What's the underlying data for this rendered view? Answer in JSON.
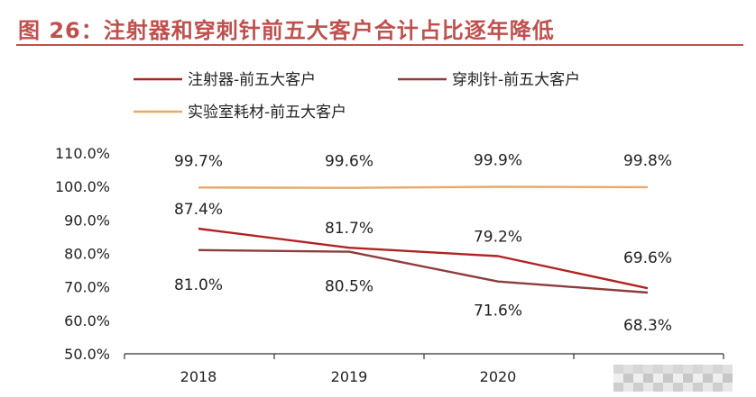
{
  "figure_title": "图 26：注射器和穿刺针前五大客户合计占比逐年降低",
  "chart_data": {
    "type": "line",
    "title": "图 26：注射器和穿刺针前五大客户合计占比逐年降低",
    "x": [
      "2018",
      "2019",
      "2020",
      "2021"
    ],
    "x_tick_labels": [
      "2018",
      "2019",
      "2020",
      ""
    ],
    "ylim": [
      50,
      110
    ],
    "y_ticks": [
      "50.0%",
      "60.0%",
      "70.0%",
      "80.0%",
      "90.0%",
      "100.0%",
      "110.0%"
    ],
    "grid": false,
    "legend_position": "top-left",
    "series": [
      {
        "name": "注射器-前五大客户",
        "color": "#B22222",
        "values": [
          87.4,
          81.7,
          79.2,
          69.6
        ],
        "labels": [
          "87.4%",
          "81.7%",
          "79.2%",
          "69.6%"
        ]
      },
      {
        "name": "穿刺针-前五大客户",
        "color": "#8E3B3B",
        "values": [
          81.0,
          80.5,
          71.6,
          68.3
        ],
        "labels": [
          "81.0%",
          "80.5%",
          "71.6%",
          "68.3%"
        ]
      },
      {
        "name": "实验室耗材-前五大客户",
        "color": "#E8A868",
        "values": [
          99.7,
          99.6,
          99.9,
          99.8
        ],
        "labels": [
          "99.7%",
          "99.6%",
          "99.9%",
          "99.8%"
        ]
      }
    ]
  }
}
